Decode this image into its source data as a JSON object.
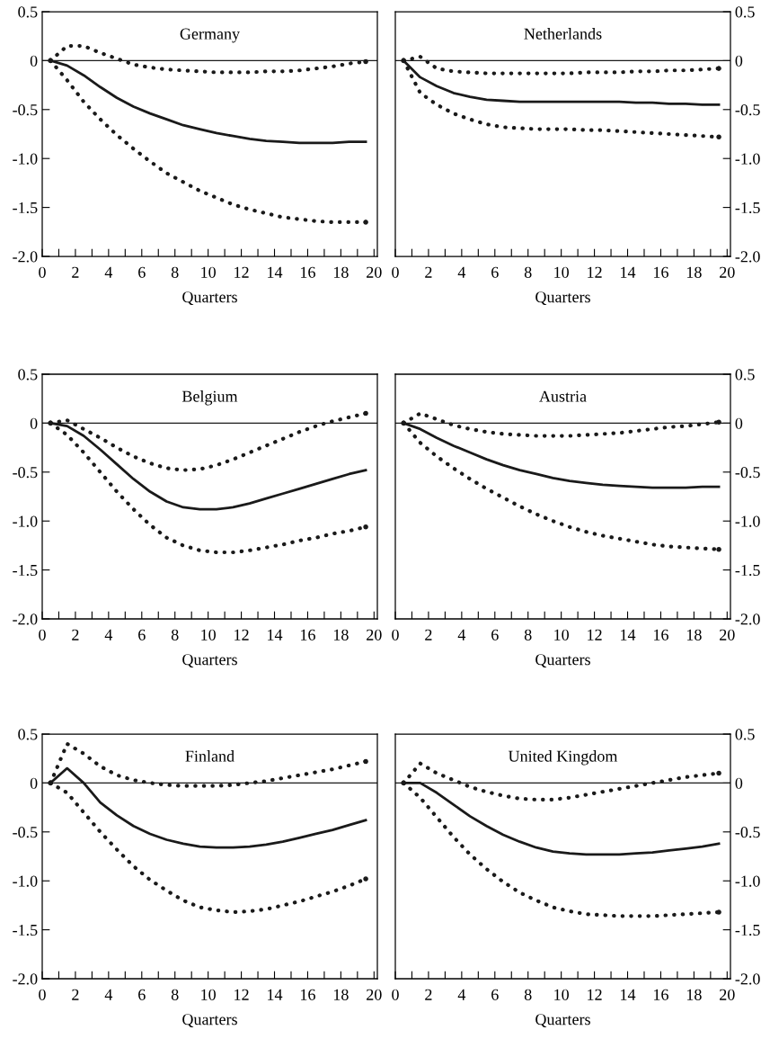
{
  "chart_data": [
    {
      "type": "line",
      "title": "Germany",
      "xlabel": "Quarters",
      "x": [
        0.5,
        1.5,
        2.5,
        3.5,
        4.5,
        5.5,
        6.5,
        7.5,
        8.5,
        9.5,
        10.5,
        11.5,
        12.5,
        13.5,
        14.5,
        15.5,
        16.5,
        17.5,
        18.5,
        19.5
      ],
      "series": [
        {
          "color": "#1a1a1a",
          "line_style": "solid",
          "values": [
            0,
            -0.05,
            -0.15,
            -0.27,
            -0.38,
            -0.47,
            -0.54,
            -0.6,
            -0.66,
            -0.7,
            -0.74,
            -0.77,
            -0.8,
            -0.82,
            -0.83,
            -0.84,
            -0.84,
            -0.84,
            -0.83,
            -0.83
          ]
        },
        {
          "color": "#1a1a1a",
          "line_style": "dotted",
          "values": [
            0,
            0.15,
            0.15,
            0.08,
            0.02,
            -0.04,
            -0.07,
            -0.09,
            -0.1,
            -0.11,
            -0.12,
            -0.12,
            -0.12,
            -0.11,
            -0.11,
            -0.1,
            -0.08,
            -0.06,
            -0.03,
            -0.01
          ]
        },
        {
          "color": "#1a1a1a",
          "line_style": "dotted",
          "values": [
            0,
            -0.2,
            -0.42,
            -0.6,
            -0.76,
            -0.9,
            -1.03,
            -1.15,
            -1.24,
            -1.33,
            -1.4,
            -1.47,
            -1.52,
            -1.56,
            -1.6,
            -1.62,
            -1.64,
            -1.65,
            -1.65,
            -1.65
          ]
        }
      ],
      "xlim": [
        0,
        20.2
      ],
      "ylim": [
        -2.0,
        0.5
      ],
      "xticks": [
        0,
        {
          "value": 1,
          "label": null
        },
        2,
        {
          "value": 3,
          "label": null
        },
        4,
        {
          "value": 5,
          "label": null
        },
        6,
        {
          "value": 7,
          "label": null
        },
        8,
        {
          "value": 9,
          "label": null
        },
        10,
        {
          "value": 11,
          "label": null
        },
        12,
        {
          "value": 13,
          "label": null
        },
        14,
        {
          "value": 15,
          "label": null
        },
        16,
        {
          "value": 17,
          "label": null
        },
        18,
        {
          "value": 19,
          "label": null
        },
        20
      ],
      "yticks": [
        {
          "value": -2.0,
          "label": "-2.0"
        },
        {
          "value": -1.5,
          "label": "-1.5"
        },
        {
          "value": -1.0,
          "label": "-1.0"
        },
        {
          "value": -0.5,
          "label": "-0.5"
        },
        0,
        {
          "value": 0.5,
          "label": "0.5"
        }
      ],
      "ref_lines": [
        {
          "axis": "y",
          "value": 0,
          "label": null,
          "color": "#1a1a1a"
        }
      ],
      "grid": false,
      "legend": false
    },
    {
      "type": "line",
      "title": "Netherlands",
      "xlabel": "Quarters",
      "x": [
        0.5,
        1.5,
        2.5,
        3.5,
        4.5,
        5.5,
        6.5,
        7.5,
        8.5,
        9.5,
        10.5,
        11.5,
        12.5,
        13.5,
        14.5,
        15.5,
        16.5,
        17.5,
        18.5,
        19.5
      ],
      "series": [
        {
          "color": "#1a1a1a",
          "line_style": "solid",
          "values": [
            0,
            -0.17,
            -0.26,
            -0.33,
            -0.37,
            -0.4,
            -0.41,
            -0.42,
            -0.42,
            -0.42,
            -0.42,
            -0.42,
            -0.42,
            -0.42,
            -0.43,
            -0.43,
            -0.44,
            -0.44,
            -0.45,
            -0.45
          ]
        },
        {
          "color": "#1a1a1a",
          "line_style": "dotted",
          "values": [
            0,
            0.04,
            -0.08,
            -0.11,
            -0.12,
            -0.13,
            -0.13,
            -0.13,
            -0.13,
            -0.13,
            -0.13,
            -0.12,
            -0.12,
            -0.12,
            -0.11,
            -0.11,
            -0.1,
            -0.1,
            -0.09,
            -0.08
          ]
        },
        {
          "color": "#1a1a1a",
          "line_style": "dotted",
          "values": [
            0,
            -0.33,
            -0.45,
            -0.54,
            -0.6,
            -0.65,
            -0.68,
            -0.69,
            -0.7,
            -0.7,
            -0.7,
            -0.71,
            -0.71,
            -0.72,
            -0.73,
            -0.74,
            -0.75,
            -0.76,
            -0.77,
            -0.78
          ]
        }
      ],
      "xlim": [
        0,
        20.2
      ],
      "ylim": [
        -2.0,
        0.5
      ],
      "xticks": [
        0,
        {
          "value": 1,
          "label": null
        },
        2,
        {
          "value": 3,
          "label": null
        },
        4,
        {
          "value": 5,
          "label": null
        },
        6,
        {
          "value": 7,
          "label": null
        },
        8,
        {
          "value": 9,
          "label": null
        },
        10,
        {
          "value": 11,
          "label": null
        },
        12,
        {
          "value": 13,
          "label": null
        },
        14,
        {
          "value": 15,
          "label": null
        },
        16,
        {
          "value": 17,
          "label": null
        },
        18,
        {
          "value": 19,
          "label": null
        },
        20
      ],
      "yticks": [
        {
          "value": -2.0,
          "label": "-2.0"
        },
        {
          "value": -1.5,
          "label": "-1.5"
        },
        {
          "value": -1.0,
          "label": "-1.0"
        },
        {
          "value": -0.5,
          "label": "-0.5"
        },
        0,
        {
          "value": 0.5,
          "label": "0.5"
        }
      ],
      "ref_lines": [
        {
          "axis": "y",
          "value": 0,
          "label": null,
          "color": "#1a1a1a"
        }
      ],
      "grid": false,
      "legend": false
    },
    {
      "type": "line",
      "title": "Belgium",
      "xlabel": "Quarters",
      "x": [
        0.5,
        1.5,
        2.5,
        3.5,
        4.5,
        5.5,
        6.5,
        7.5,
        8.5,
        9.5,
        10.5,
        11.5,
        12.5,
        13.5,
        14.5,
        15.5,
        16.5,
        17.5,
        18.5,
        19.5
      ],
      "series": [
        {
          "color": "#1a1a1a",
          "line_style": "solid",
          "values": [
            0,
            -0.03,
            -0.13,
            -0.27,
            -0.42,
            -0.57,
            -0.7,
            -0.8,
            -0.86,
            -0.88,
            -0.88,
            -0.86,
            -0.82,
            -0.77,
            -0.72,
            -0.67,
            -0.62,
            -0.57,
            -0.52,
            -0.48
          ]
        },
        {
          "color": "#1a1a1a",
          "line_style": "dotted",
          "values": [
            0,
            0.03,
            -0.06,
            -0.15,
            -0.25,
            -0.34,
            -0.41,
            -0.46,
            -0.48,
            -0.47,
            -0.43,
            -0.37,
            -0.3,
            -0.23,
            -0.16,
            -0.09,
            -0.03,
            0.02,
            0.06,
            0.1
          ]
        },
        {
          "color": "#1a1a1a",
          "line_style": "dotted",
          "values": [
            0,
            -0.12,
            -0.3,
            -0.5,
            -0.7,
            -0.88,
            -1.04,
            -1.17,
            -1.25,
            -1.3,
            -1.32,
            -1.32,
            -1.3,
            -1.27,
            -1.24,
            -1.2,
            -1.17,
            -1.13,
            -1.1,
            -1.06
          ]
        }
      ],
      "xlim": [
        0,
        20.2
      ],
      "ylim": [
        -2.0,
        0.5
      ],
      "xticks": [
        0,
        {
          "value": 1,
          "label": null
        },
        2,
        {
          "value": 3,
          "label": null
        },
        4,
        {
          "value": 5,
          "label": null
        },
        6,
        {
          "value": 7,
          "label": null
        },
        8,
        {
          "value": 9,
          "label": null
        },
        10,
        {
          "value": 11,
          "label": null
        },
        12,
        {
          "value": 13,
          "label": null
        },
        14,
        {
          "value": 15,
          "label": null
        },
        16,
        {
          "value": 17,
          "label": null
        },
        18,
        {
          "value": 19,
          "label": null
        },
        20
      ],
      "yticks": [
        {
          "value": -2.0,
          "label": "-2.0"
        },
        {
          "value": -1.5,
          "label": "-1.5"
        },
        {
          "value": -1.0,
          "label": "-1.0"
        },
        {
          "value": -0.5,
          "label": "-0.5"
        },
        0,
        {
          "value": 0.5,
          "label": "0.5"
        }
      ],
      "ref_lines": [
        {
          "axis": "y",
          "value": 0,
          "label": null,
          "color": "#1a1a1a"
        }
      ],
      "grid": false,
      "legend": false
    },
    {
      "type": "line",
      "title": "Austria",
      "xlabel": "Quarters",
      "x": [
        0.5,
        1.5,
        2.5,
        3.5,
        4.5,
        5.5,
        6.5,
        7.5,
        8.5,
        9.5,
        10.5,
        11.5,
        12.5,
        13.5,
        14.5,
        15.5,
        16.5,
        17.5,
        18.5,
        19.5
      ],
      "series": [
        {
          "color": "#1a1a1a",
          "line_style": "solid",
          "values": [
            0,
            -0.06,
            -0.15,
            -0.23,
            -0.3,
            -0.37,
            -0.43,
            -0.48,
            -0.52,
            -0.56,
            -0.59,
            -0.61,
            -0.63,
            -0.64,
            -0.65,
            -0.66,
            -0.66,
            -0.66,
            -0.65,
            -0.65
          ]
        },
        {
          "color": "#1a1a1a",
          "line_style": "dotted",
          "values": [
            0,
            0.1,
            0.04,
            -0.02,
            -0.06,
            -0.09,
            -0.11,
            -0.12,
            -0.13,
            -0.13,
            -0.13,
            -0.12,
            -0.11,
            -0.1,
            -0.08,
            -0.06,
            -0.04,
            -0.03,
            -0.01,
            0.01
          ]
        },
        {
          "color": "#1a1a1a",
          "line_style": "dotted",
          "values": [
            0,
            -0.2,
            -0.34,
            -0.46,
            -0.57,
            -0.67,
            -0.76,
            -0.85,
            -0.93,
            -1.0,
            -1.06,
            -1.11,
            -1.15,
            -1.18,
            -1.21,
            -1.24,
            -1.26,
            -1.27,
            -1.28,
            -1.29
          ]
        }
      ],
      "xlim": [
        0,
        20.2
      ],
      "ylim": [
        -2.0,
        0.5
      ],
      "xticks": [
        0,
        {
          "value": 1,
          "label": null
        },
        2,
        {
          "value": 3,
          "label": null
        },
        4,
        {
          "value": 5,
          "label": null
        },
        6,
        {
          "value": 7,
          "label": null
        },
        8,
        {
          "value": 9,
          "label": null
        },
        10,
        {
          "value": 11,
          "label": null
        },
        12,
        {
          "value": 13,
          "label": null
        },
        14,
        {
          "value": 15,
          "label": null
        },
        16,
        {
          "value": 17,
          "label": null
        },
        18,
        {
          "value": 19,
          "label": null
        },
        20
      ],
      "yticks": [
        {
          "value": -2.0,
          "label": "-2.0"
        },
        {
          "value": -1.5,
          "label": "-1.5"
        },
        {
          "value": -1.0,
          "label": "-1.0"
        },
        {
          "value": -0.5,
          "label": "-0.5"
        },
        0,
        {
          "value": 0.5,
          "label": "0.5"
        }
      ],
      "ref_lines": [
        {
          "axis": "y",
          "value": 0,
          "label": null,
          "color": "#1a1a1a"
        }
      ],
      "grid": false,
      "legend": false
    },
    {
      "type": "line",
      "title": "Finland",
      "xlabel": "Quarters",
      "x": [
        0.5,
        1.5,
        2.5,
        3.5,
        4.5,
        5.5,
        6.5,
        7.5,
        8.5,
        9.5,
        10.5,
        11.5,
        12.5,
        13.5,
        14.5,
        15.5,
        16.5,
        17.5,
        18.5,
        19.5
      ],
      "series": [
        {
          "color": "#1a1a1a",
          "line_style": "solid",
          "values": [
            0,
            0.15,
            0.0,
            -0.2,
            -0.33,
            -0.44,
            -0.52,
            -0.58,
            -0.62,
            -0.65,
            -0.66,
            -0.66,
            -0.65,
            -0.63,
            -0.6,
            -0.56,
            -0.52,
            -0.48,
            -0.43,
            -0.38
          ]
        },
        {
          "color": "#1a1a1a",
          "line_style": "dotted",
          "values": [
            0,
            0.4,
            0.3,
            0.17,
            0.08,
            0.03,
            0.0,
            -0.02,
            -0.03,
            -0.03,
            -0.03,
            -0.02,
            0.0,
            0.02,
            0.05,
            0.08,
            0.11,
            0.14,
            0.18,
            0.22
          ]
        },
        {
          "color": "#1a1a1a",
          "line_style": "dotted",
          "values": [
            0,
            -0.1,
            -0.3,
            -0.5,
            -0.68,
            -0.85,
            -0.99,
            -1.1,
            -1.2,
            -1.27,
            -1.3,
            -1.32,
            -1.31,
            -1.29,
            -1.25,
            -1.21,
            -1.16,
            -1.11,
            -1.05,
            -0.98
          ]
        }
      ],
      "xlim": [
        0,
        20.2
      ],
      "ylim": [
        -2.0,
        0.5
      ],
      "xticks": [
        0,
        {
          "value": 1,
          "label": null
        },
        2,
        {
          "value": 3,
          "label": null
        },
        4,
        {
          "value": 5,
          "label": null
        },
        6,
        {
          "value": 7,
          "label": null
        },
        8,
        {
          "value": 9,
          "label": null
        },
        10,
        {
          "value": 11,
          "label": null
        },
        12,
        {
          "value": 13,
          "label": null
        },
        14,
        {
          "value": 15,
          "label": null
        },
        16,
        {
          "value": 17,
          "label": null
        },
        18,
        {
          "value": 19,
          "label": null
        },
        20
      ],
      "yticks": [
        {
          "value": -2.0,
          "label": "-2.0"
        },
        {
          "value": -1.5,
          "label": "-1.5"
        },
        {
          "value": -1.0,
          "label": "-1.0"
        },
        {
          "value": -0.5,
          "label": "-0.5"
        },
        0,
        {
          "value": 0.5,
          "label": "0.5"
        }
      ],
      "ref_lines": [
        {
          "axis": "y",
          "value": 0,
          "label": null,
          "color": "#1a1a1a"
        }
      ],
      "grid": false,
      "legend": false
    },
    {
      "type": "line",
      "title": "United Kingdom",
      "xlabel": "Quarters",
      "x": [
        0.5,
        1.5,
        2.5,
        3.5,
        4.5,
        5.5,
        6.5,
        7.5,
        8.5,
        9.5,
        10.5,
        11.5,
        12.5,
        13.5,
        14.5,
        15.5,
        16.5,
        17.5,
        18.5,
        19.5
      ],
      "series": [
        {
          "color": "#1a1a1a",
          "line_style": "solid",
          "values": [
            0,
            0,
            -0.1,
            -0.22,
            -0.34,
            -0.44,
            -0.53,
            -0.6,
            -0.66,
            -0.7,
            -0.72,
            -0.73,
            -0.73,
            -0.73,
            -0.72,
            -0.71,
            -0.69,
            -0.67,
            -0.65,
            -0.62
          ]
        },
        {
          "color": "#1a1a1a",
          "line_style": "dotted",
          "values": [
            0,
            0.2,
            0.1,
            0.03,
            -0.04,
            -0.09,
            -0.13,
            -0.16,
            -0.17,
            -0.17,
            -0.15,
            -0.12,
            -0.09,
            -0.06,
            -0.03,
            0.0,
            0.03,
            0.06,
            0.08,
            0.1
          ]
        },
        {
          "color": "#1a1a1a",
          "line_style": "dotted",
          "values": [
            0,
            -0.15,
            -0.35,
            -0.55,
            -0.73,
            -0.88,
            -1.01,
            -1.12,
            -1.2,
            -1.27,
            -1.31,
            -1.34,
            -1.35,
            -1.36,
            -1.36,
            -1.36,
            -1.35,
            -1.34,
            -1.33,
            -1.32
          ]
        }
      ],
      "xlim": [
        0,
        20.2
      ],
      "ylim": [
        -2.0,
        0.5
      ],
      "xticks": [
        0,
        {
          "value": 1,
          "label": null
        },
        2,
        {
          "value": 3,
          "label": null
        },
        4,
        {
          "value": 5,
          "label": null
        },
        6,
        {
          "value": 7,
          "label": null
        },
        8,
        {
          "value": 9,
          "label": null
        },
        10,
        {
          "value": 11,
          "label": null
        },
        12,
        {
          "value": 13,
          "label": null
        },
        14,
        {
          "value": 15,
          "label": null
        },
        16,
        {
          "value": 17,
          "label": null
        },
        18,
        {
          "value": 19,
          "label": null
        },
        20
      ],
      "yticks": [
        {
          "value": -2.0,
          "label": "-2.0"
        },
        {
          "value": -1.5,
          "label": "-1.5"
        },
        {
          "value": -1.0,
          "label": "-1.0"
        },
        {
          "value": -0.5,
          "label": "-0.5"
        },
        0,
        {
          "value": 0.5,
          "label": "0.5"
        }
      ],
      "ref_lines": [
        {
          "axis": "y",
          "value": 0,
          "label": null,
          "color": "#1a1a1a"
        }
      ],
      "grid": false,
      "legend": false
    }
  ]
}
